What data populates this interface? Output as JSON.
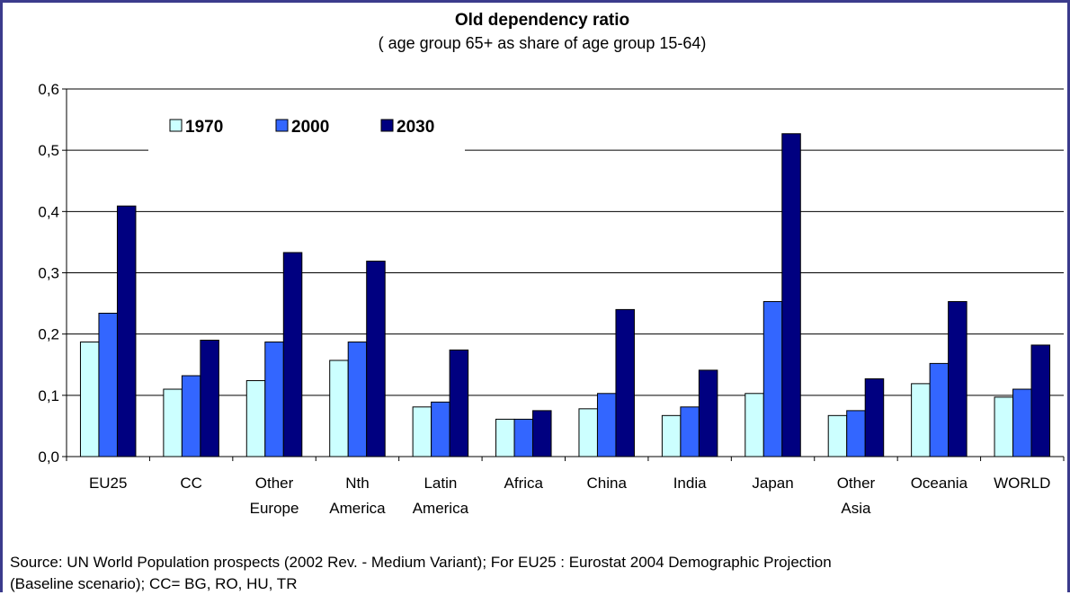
{
  "chart_data": {
    "type": "bar",
    "title": "Old dependency ratio",
    "subtitle": "( age group 65+ as share of  age group 15-64)",
    "xlabel": "",
    "ylabel": "",
    "ylim": [
      0,
      0.6
    ],
    "yticks": [
      "0,0",
      "0,1",
      "0,2",
      "0,3",
      "0,4",
      "0,5",
      "0,6"
    ],
    "categories": [
      [
        "EU25"
      ],
      [
        "CC"
      ],
      [
        "Other",
        "Europe"
      ],
      [
        "Nth",
        "America"
      ],
      [
        "Latin",
        "America"
      ],
      [
        "Africa"
      ],
      [
        "China"
      ],
      [
        "India"
      ],
      [
        "Japan"
      ],
      [
        "Other",
        "Asia"
      ],
      [
        "Oceania"
      ],
      [
        "WORLD"
      ]
    ],
    "series": [
      {
        "name": "1970",
        "color": "#ccffff",
        "values": [
          0.187,
          0.11,
          0.124,
          0.157,
          0.081,
          0.061,
          0.078,
          0.067,
          0.103,
          0.067,
          0.119,
          0.097
        ]
      },
      {
        "name": "2000",
        "color": "#3366ff",
        "values": [
          0.234,
          0.132,
          0.187,
          0.187,
          0.089,
          0.061,
          0.103,
          0.081,
          0.253,
          0.075,
          0.152,
          0.11
        ]
      },
      {
        "name": "2030",
        "color": "#000080",
        "values": [
          0.409,
          0.19,
          0.333,
          0.319,
          0.174,
          0.075,
          0.24,
          0.141,
          0.527,
          0.127,
          0.253,
          0.182
        ]
      }
    ],
    "grid": true,
    "legend": "top-left"
  },
  "footnote": {
    "line1": "Source: UN World Population prospects (2002 Rev. - Medium Variant); For EU25 : Eurostat 2004 Demographic Projection",
    "line2": "(Baseline scenario); CC= BG, RO, HU, TR"
  }
}
